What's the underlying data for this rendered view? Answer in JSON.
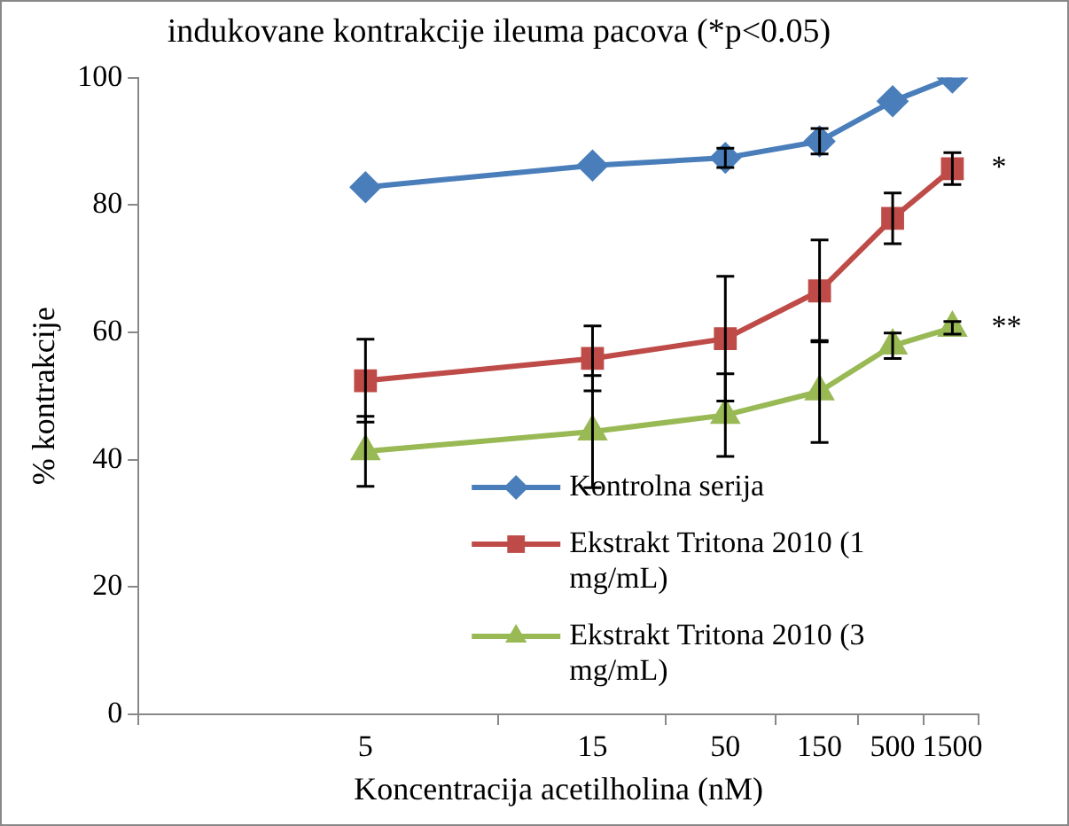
{
  "chart_data": {
    "type": "line",
    "title": "indukovane kontrakcije ileuma pacova (*p<0.05)",
    "xlabel": "Koncentracija acetilholina (nM)",
    "ylabel": "% kontrakcije",
    "categories": [
      "5",
      "15",
      "50",
      "150",
      "500",
      "1500"
    ],
    "series": [
      {
        "name": "Kontrolna serija",
        "color": "#4a7ebb",
        "marker": "diamond",
        "values": [
          82.8,
          86.2,
          87.4,
          90,
          96.3,
          100
        ],
        "errors": [
          null,
          null,
          1.5,
          2,
          null,
          null
        ]
      },
      {
        "name": "Ekstrakt Tritona 2010 (1 mg/mL)",
        "color": "#be4b48",
        "marker": "square",
        "values": [
          52.4,
          55.9,
          59,
          66.5,
          77.9,
          85.7
        ],
        "errors": [
          6.5,
          5.1,
          9.8,
          8,
          4,
          2.5
        ]
      },
      {
        "name": "Ekstrakt Tritona 2010 (3 mg/mL)",
        "color": "#98b954",
        "marker": "triangle",
        "values": [
          41.3,
          44.4,
          47,
          50.7,
          57.9,
          60.7
        ],
        "errors": [
          5.5,
          8.8,
          6.5,
          8,
          2,
          1
        ]
      }
    ],
    "ylim": [
      0,
      100
    ],
    "yticks": [
      0,
      20,
      40,
      60,
      80,
      100
    ],
    "grid": false,
    "legend": "bottom right",
    "annotations": [
      {
        "text": "*",
        "x": "1500",
        "y": 85.7
      },
      {
        "text": "**",
        "x": "1500",
        "y": 60.7
      }
    ]
  }
}
